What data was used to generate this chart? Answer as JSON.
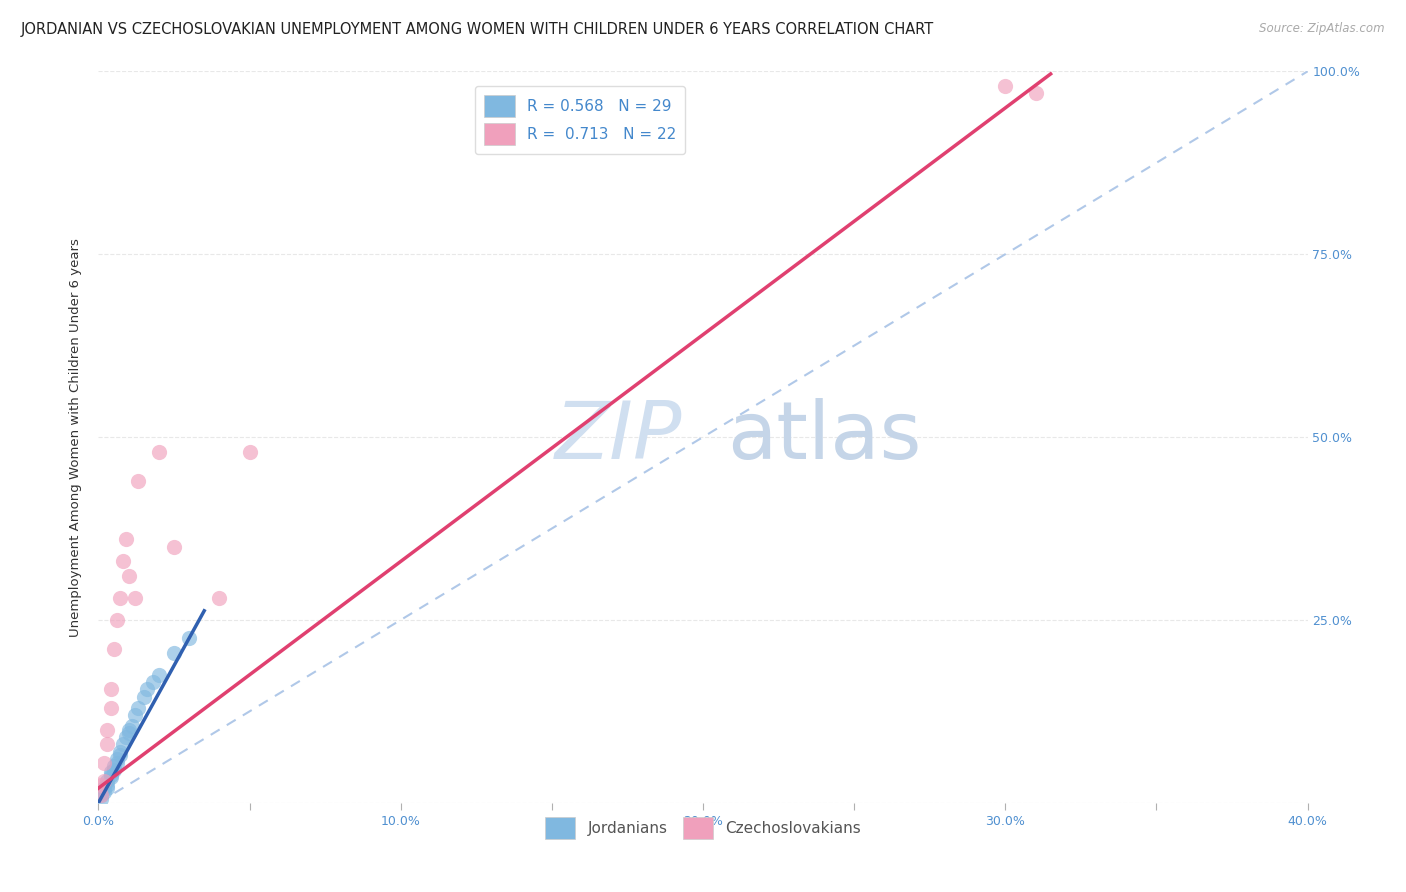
{
  "title": "JORDANIAN VS CZECHOSLOVAKIAN UNEMPLOYMENT AMONG WOMEN WITH CHILDREN UNDER 6 YEARS CORRELATION CHART",
  "source": "Source: ZipAtlas.com",
  "ylabel": "Unemployment Among Women with Children Under 6 years",
  "xlim": [
    0.0,
    0.4
  ],
  "ylim": [
    0.0,
    1.0
  ],
  "xticks": [
    0.0,
    0.05,
    0.1,
    0.15,
    0.2,
    0.25,
    0.3,
    0.35,
    0.4
  ],
  "xticklabels": [
    "0.0%",
    "",
    "10.0%",
    "",
    "20.0%",
    "",
    "30.0%",
    "",
    "40.0%"
  ],
  "yticks": [
    0.0,
    0.25,
    0.5,
    0.75,
    1.0
  ],
  "yticklabels": [
    "",
    "25.0%",
    "50.0%",
    "75.0%",
    "100.0%"
  ],
  "legend_r_entries": [
    {
      "label": "R = 0.568   N = 29",
      "color": "#a8c8e8"
    },
    {
      "label": "R =  0.713   N = 22",
      "color": "#f4b0c8"
    }
  ],
  "legend_bottom": [
    {
      "label": "Jordanians",
      "color": "#a8c8e8"
    },
    {
      "label": "Czechoslovakians",
      "color": "#f4b0c8"
    }
  ],
  "blue_scatter_x": [
    0.001,
    0.001,
    0.002,
    0.002,
    0.003,
    0.003,
    0.003,
    0.004,
    0.004,
    0.004,
    0.005,
    0.005,
    0.006,
    0.006,
    0.007,
    0.007,
    0.008,
    0.009,
    0.01,
    0.01,
    0.011,
    0.012,
    0.013,
    0.015,
    0.016,
    0.018,
    0.02,
    0.025,
    0.03
  ],
  "blue_scatter_y": [
    0.005,
    0.01,
    0.015,
    0.02,
    0.02,
    0.025,
    0.03,
    0.035,
    0.038,
    0.042,
    0.045,
    0.05,
    0.055,
    0.06,
    0.065,
    0.07,
    0.08,
    0.09,
    0.095,
    0.1,
    0.105,
    0.12,
    0.13,
    0.145,
    0.155,
    0.165,
    0.175,
    0.205,
    0.225
  ],
  "pink_scatter_x": [
    0.001,
    0.001,
    0.002,
    0.002,
    0.003,
    0.003,
    0.004,
    0.004,
    0.005,
    0.006,
    0.007,
    0.008,
    0.009,
    0.01,
    0.012,
    0.013,
    0.02,
    0.025,
    0.04,
    0.05,
    0.3,
    0.31
  ],
  "pink_scatter_y": [
    0.01,
    0.025,
    0.03,
    0.055,
    0.08,
    0.1,
    0.13,
    0.155,
    0.21,
    0.25,
    0.28,
    0.33,
    0.36,
    0.31,
    0.28,
    0.44,
    0.48,
    0.35,
    0.28,
    0.48,
    0.98,
    0.97
  ],
  "blue_line_intercept": 0.0,
  "blue_line_slope": 7.5,
  "blue_line_xmax": 0.035,
  "pink_line_intercept": 0.02,
  "pink_line_slope": 3.1,
  "pink_line_xmax": 0.315,
  "ref_line_color": "#b0c8e8",
  "ref_line_style": "--",
  "background_color": "#ffffff",
  "grid_color": "#e8e8e8",
  "scatter_size": 120,
  "blue_scatter_color": "#80b8e0",
  "pink_scatter_color": "#f0a0bc",
  "blue_line_color": "#3060b0",
  "pink_line_color": "#e04070",
  "title_fontsize": 10.5,
  "axis_label_fontsize": 9.5,
  "tick_fontsize": 9,
  "legend_fontsize": 11,
  "watermark_zip": "ZIP",
  "watermark_atlas": "atlas",
  "watermark_color_zip": "#d0dff0",
  "watermark_color_atlas": "#c5d5e8",
  "watermark_fontsize": 58
}
